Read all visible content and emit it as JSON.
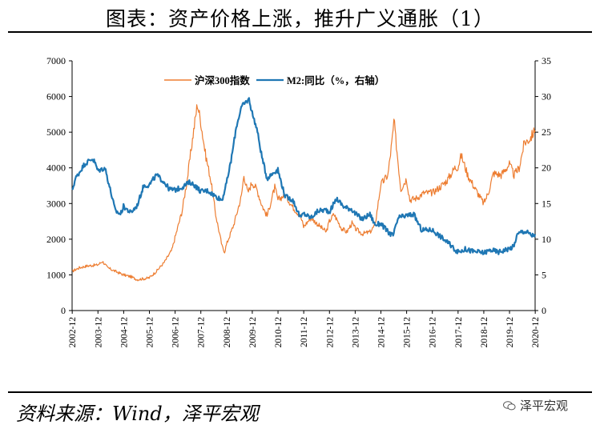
{
  "title": "图表：资产价格上涨，推升广义通胀（1）",
  "source": "资料来源：Wind，泽平宏观",
  "watermark": "泽平宏观",
  "chart_data": {
    "type": "line",
    "x_ticks": [
      "2002-12",
      "2003-12",
      "2004-12",
      "2005-12",
      "2006-12",
      "2007-12",
      "2008-12",
      "2009-12",
      "2010-12",
      "2011-12",
      "2012-12",
      "2013-12",
      "2014-12",
      "2015-12",
      "2016-12",
      "2017-12",
      "2018-12",
      "2019-12",
      "2020-12"
    ],
    "y_left_ticks": [
      "0",
      "1000",
      "2000",
      "3000",
      "4000",
      "5000",
      "6000",
      "7000"
    ],
    "y_right_ticks": [
      "0",
      "5",
      "10",
      "15",
      "20",
      "25",
      "30",
      "35"
    ],
    "y_left_lim": [
      0,
      7000
    ],
    "y_right_lim": [
      0,
      35
    ],
    "x_range": [
      2002.92,
      2020.92
    ],
    "legend_position": "top-center",
    "grid": false,
    "series": [
      {
        "name": "沪深300指数",
        "axis": "left",
        "color": "#ED7D31",
        "points": [
          [
            2002.92,
            1100
          ],
          [
            2003.2,
            1200
          ],
          [
            2003.5,
            1250
          ],
          [
            2003.92,
            1280
          ],
          [
            2004.1,
            1380
          ],
          [
            2004.3,
            1200
          ],
          [
            2004.6,
            1100
          ],
          [
            2004.92,
            1000
          ],
          [
            2005.2,
            950
          ],
          [
            2005.45,
            870
          ],
          [
            2005.8,
            900
          ],
          [
            2005.92,
            920
          ],
          [
            2006.2,
            1100
          ],
          [
            2006.5,
            1350
          ],
          [
            2006.8,
            1700
          ],
          [
            2006.92,
            2041
          ],
          [
            2007.2,
            2800
          ],
          [
            2007.4,
            3700
          ],
          [
            2007.6,
            4800
          ],
          [
            2007.79,
            5800
          ],
          [
            2007.92,
            5300
          ],
          [
            2008.1,
            4400
          ],
          [
            2008.3,
            3700
          ],
          [
            2008.5,
            2700
          ],
          [
            2008.75,
            1800
          ],
          [
            2008.85,
            1650
          ],
          [
            2008.92,
            1850
          ],
          [
            2009.2,
            2400
          ],
          [
            2009.5,
            3200
          ],
          [
            2009.6,
            3800
          ],
          [
            2009.75,
            3300
          ],
          [
            2009.92,
            3600
          ],
          [
            2010.1,
            3400
          ],
          [
            2010.3,
            2950
          ],
          [
            2010.5,
            2650
          ],
          [
            2010.8,
            3450
          ],
          [
            2010.92,
            3100
          ],
          [
            2011.2,
            3250
          ],
          [
            2011.5,
            2900
          ],
          [
            2011.8,
            2650
          ],
          [
            2011.92,
            2350
          ],
          [
            2012.2,
            2600
          ],
          [
            2012.5,
            2400
          ],
          [
            2012.8,
            2200
          ],
          [
            2012.92,
            2500
          ],
          [
            2013.1,
            2700
          ],
          [
            2013.4,
            2300
          ],
          [
            2013.6,
            2200
          ],
          [
            2013.8,
            2450
          ],
          [
            2013.92,
            2300
          ],
          [
            2014.2,
            2150
          ],
          [
            2014.5,
            2200
          ],
          [
            2014.7,
            2400
          ],
          [
            2014.92,
            3530
          ],
          [
            2015.2,
            3800
          ],
          [
            2015.4,
            5000
          ],
          [
            2015.43,
            5350
          ],
          [
            2015.6,
            4100
          ],
          [
            2015.7,
            3400
          ],
          [
            2015.92,
            3700
          ],
          [
            2016.05,
            3100
          ],
          [
            2016.3,
            3150
          ],
          [
            2016.6,
            3300
          ],
          [
            2016.92,
            3300
          ],
          [
            2017.2,
            3450
          ],
          [
            2017.5,
            3650
          ],
          [
            2017.8,
            4000
          ],
          [
            2017.92,
            4030
          ],
          [
            2018.05,
            4350
          ],
          [
            2018.3,
            3800
          ],
          [
            2018.6,
            3400
          ],
          [
            2018.92,
            3000
          ],
          [
            2019.1,
            3300
          ],
          [
            2019.3,
            3850
          ],
          [
            2019.6,
            3800
          ],
          [
            2019.92,
            4100
          ],
          [
            2020.1,
            3800
          ],
          [
            2020.3,
            4000
          ],
          [
            2020.5,
            4700
          ],
          [
            2020.7,
            4800
          ],
          [
            2020.92,
            5050
          ]
        ]
      },
      {
        "name": "M2:同比（%，右轴）",
        "axis": "right",
        "color": "#1F77B4",
        "points": [
          [
            2002.92,
            16.8
          ],
          [
            2003.05,
            18.5
          ],
          [
            2003.4,
            20.5
          ],
          [
            2003.7,
            21.3
          ],
          [
            2003.8,
            20.8
          ],
          [
            2003.92,
            19.6
          ],
          [
            2004.2,
            20.0
          ],
          [
            2004.4,
            17.0
          ],
          [
            2004.6,
            14.0
          ],
          [
            2004.8,
            13.5
          ],
          [
            2004.92,
            14.6
          ],
          [
            2005.2,
            13.7
          ],
          [
            2005.45,
            14.7
          ],
          [
            2005.7,
            17.5
          ],
          [
            2005.92,
            17.6
          ],
          [
            2006.2,
            19.0
          ],
          [
            2006.5,
            18.0
          ],
          [
            2006.7,
            17.0
          ],
          [
            2006.92,
            16.9
          ],
          [
            2007.2,
            17.3
          ],
          [
            2007.5,
            18.0
          ],
          [
            2007.7,
            17.5
          ],
          [
            2007.92,
            16.7
          ],
          [
            2008.2,
            16.8
          ],
          [
            2008.5,
            16.0
          ],
          [
            2008.75,
            15.5
          ],
          [
            2008.92,
            17.8
          ],
          [
            2009.1,
            21.0
          ],
          [
            2009.3,
            25.7
          ],
          [
            2009.5,
            28.5
          ],
          [
            2009.7,
            29.3
          ],
          [
            2009.8,
            29.6
          ],
          [
            2009.92,
            27.7
          ],
          [
            2010.1,
            25.5
          ],
          [
            2010.3,
            21.5
          ],
          [
            2010.5,
            18.5
          ],
          [
            2010.8,
            19.5
          ],
          [
            2010.92,
            19.7
          ],
          [
            2011.2,
            16.0
          ],
          [
            2011.5,
            15.5
          ],
          [
            2011.8,
            13.0
          ],
          [
            2011.92,
            13.6
          ],
          [
            2012.2,
            13.0
          ],
          [
            2012.5,
            14.0
          ],
          [
            2012.8,
            14.1
          ],
          [
            2012.92,
            13.8
          ],
          [
            2013.2,
            15.7
          ],
          [
            2013.5,
            14.5
          ],
          [
            2013.8,
            14.2
          ],
          [
            2013.92,
            13.6
          ],
          [
            2014.2,
            12.8
          ],
          [
            2014.5,
            13.5
          ],
          [
            2014.7,
            12.0
          ],
          [
            2014.92,
            12.2
          ],
          [
            2015.2,
            11.0
          ],
          [
            2015.4,
            10.5
          ],
          [
            2015.6,
            13.0
          ],
          [
            2015.92,
            13.3
          ],
          [
            2016.2,
            13.5
          ],
          [
            2016.5,
            11.3
          ],
          [
            2016.92,
            11.3
          ],
          [
            2017.2,
            10.5
          ],
          [
            2017.5,
            9.6
          ],
          [
            2017.92,
            8.2
          ],
          [
            2018.2,
            8.6
          ],
          [
            2018.5,
            8.3
          ],
          [
            2018.92,
            8.1
          ],
          [
            2019.2,
            8.5
          ],
          [
            2019.5,
            8.2
          ],
          [
            2019.92,
            8.7
          ],
          [
            2020.1,
            9.0
          ],
          [
            2020.2,
            10.5
          ],
          [
            2020.4,
            11.1
          ],
          [
            2020.6,
            11.0
          ],
          [
            2020.8,
            10.5
          ],
          [
            2020.92,
            10.7
          ]
        ]
      }
    ]
  }
}
